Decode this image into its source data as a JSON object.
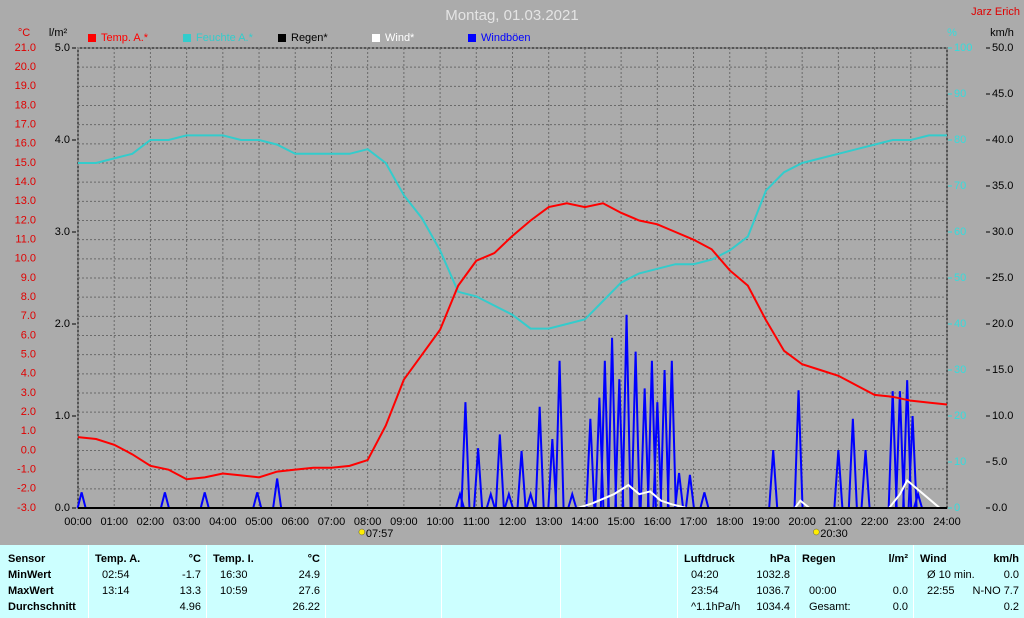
{
  "chart_data": {
    "type": "line",
    "title": "Montag, 01.03.2021",
    "author": "Jarz Erich",
    "ylabel": "°C",
    "y2label": "km/h",
    "y3label": "l/m²",
    "y4label": "%",
    "xlim": [
      0,
      24
    ],
    "xticks": [
      {
        "value": 0,
        "label": "00:00"
      },
      {
        "value": 1,
        "label": "01:00"
      },
      {
        "value": 2,
        "label": "02:00"
      },
      {
        "value": 3,
        "label": "03:00"
      },
      {
        "value": 4,
        "label": "04:00"
      },
      {
        "value": 5,
        "label": "05:00"
      },
      {
        "value": 6,
        "label": "06:00"
      },
      {
        "value": 7,
        "label": "07:00"
      },
      {
        "value": 8,
        "label": "08:00"
      },
      {
        "value": 9,
        "label": "09:00"
      },
      {
        "value": 10,
        "label": "10:00"
      },
      {
        "value": 11,
        "label": "11:00"
      },
      {
        "value": 12,
        "label": "12:00"
      },
      {
        "value": 13,
        "label": "13:00"
      },
      {
        "value": 14,
        "label": "14:00"
      },
      {
        "value": 15,
        "label": "15:00"
      },
      {
        "value": 16,
        "label": "16:00"
      },
      {
        "value": 17,
        "label": "17:00"
      },
      {
        "value": 18,
        "label": "18:00"
      },
      {
        "value": 19,
        "label": "19:00"
      },
      {
        "value": 20,
        "label": "20:00"
      },
      {
        "value": 21,
        "label": "21:00"
      },
      {
        "value": 22,
        "label": "22:00"
      },
      {
        "value": 23,
        "label": "23:00"
      },
      {
        "value": 24,
        "label": "24:00"
      }
    ],
    "ylim": [
      -3,
      21
    ],
    "yticks": [
      {
        "value": -3,
        "label": "-3.0"
      },
      {
        "value": -2,
        "label": "-2.0"
      },
      {
        "value": -1,
        "label": "-1.0"
      },
      {
        "value": 0,
        "label": "0.0"
      },
      {
        "value": 1,
        "label": "1.0"
      },
      {
        "value": 2,
        "label": "2.0"
      },
      {
        "value": 3,
        "label": "3.0"
      },
      {
        "value": 4,
        "label": "4.0"
      },
      {
        "value": 5,
        "label": "5.0"
      },
      {
        "value": 6,
        "label": "6.0"
      },
      {
        "value": 7,
        "label": "7.0"
      },
      {
        "value": 8,
        "label": "8.0"
      },
      {
        "value": 9,
        "label": "9.0"
      },
      {
        "value": 10,
        "label": "10.0"
      },
      {
        "value": 11,
        "label": "11.0"
      },
      {
        "value": 12,
        "label": "12.0"
      },
      {
        "value": 13,
        "label": "13.0"
      },
      {
        "value": 14,
        "label": "14.0"
      },
      {
        "value": 15,
        "label": "15.0"
      },
      {
        "value": 16,
        "label": "16.0"
      },
      {
        "value": 17,
        "label": "17.0"
      },
      {
        "value": 18,
        "label": "18.0"
      },
      {
        "value": 19,
        "label": "19.0"
      },
      {
        "value": 20,
        "label": "20.0"
      },
      {
        "value": 21,
        "label": "21.0"
      }
    ],
    "y2lim": [
      0,
      50
    ],
    "y2ticks": [
      {
        "value": 0,
        "label": "0.0"
      },
      {
        "value": 5,
        "label": "5.0"
      },
      {
        "value": 10,
        "label": "10.0"
      },
      {
        "value": 15,
        "label": "15.0"
      },
      {
        "value": 20,
        "label": "20.0"
      },
      {
        "value": 25,
        "label": "25.0"
      },
      {
        "value": 30,
        "label": "30.0"
      },
      {
        "value": 35,
        "label": "35.0"
      },
      {
        "value": 40,
        "label": "40.0"
      },
      {
        "value": 45,
        "label": "45.0"
      },
      {
        "value": 50,
        "label": "50.0"
      }
    ],
    "y3lim": [
      0,
      5
    ],
    "y3ticks": [
      {
        "value": 0,
        "label": "0.0"
      },
      {
        "value": 1,
        "label": "1.0"
      },
      {
        "value": 2,
        "label": "2.0"
      },
      {
        "value": 3,
        "label": "3.0"
      },
      {
        "value": 4,
        "label": "4.0"
      },
      {
        "value": 5,
        "label": "5.0"
      }
    ],
    "y4lim": [
      0,
      100
    ],
    "y4ticks": [
      0,
      10,
      20,
      30,
      40,
      50,
      60,
      70,
      80,
      90,
      100
    ],
    "grid": true,
    "x": [
      0,
      0.5,
      1,
      1.5,
      2,
      2.5,
      3,
      3.5,
      4,
      4.5,
      5,
      5.5,
      6,
      6.5,
      7,
      7.5,
      8,
      8.5,
      9,
      9.5,
      10,
      10.5,
      11,
      11.5,
      12,
      12.5,
      13,
      13.5,
      14,
      14.5,
      15,
      15.5,
      16,
      16.5,
      17,
      17.5,
      18,
      18.5,
      19,
      19.5,
      20,
      20.5,
      21,
      21.5,
      22,
      22.5,
      23,
      23.5,
      24
    ],
    "series": [
      {
        "name": "Temp. A.*",
        "color": "#ff0000",
        "axis": "y",
        "marks": "line",
        "values": [
          0.7,
          0.6,
          0.3,
          -0.2,
          -0.8,
          -1.0,
          -1.5,
          -1.4,
          -1.2,
          -1.3,
          -1.4,
          -1.1,
          -1.0,
          -0.9,
          -0.9,
          -0.8,
          -0.5,
          1.3,
          3.7,
          5.0,
          6.3,
          8.6,
          9.9,
          10.3,
          11.2,
          12.0,
          12.7,
          12.9,
          12.7,
          12.9,
          12.4,
          12.0,
          11.8,
          11.4,
          11.0,
          10.5,
          9.4,
          8.6,
          6.8,
          5.2,
          4.5,
          4.2,
          3.9,
          3.4,
          2.9,
          2.8,
          2.6,
          2.5,
          2.4
        ]
      },
      {
        "name": "Feuchte A.*",
        "color": "#33cccc",
        "axis": "y4",
        "marks": "line",
        "values": [
          75,
          75,
          76,
          77,
          80,
          80,
          81,
          81,
          81,
          80,
          80,
          79,
          77,
          77,
          77,
          77,
          78,
          75,
          68,
          63,
          56,
          47,
          46,
          44,
          42,
          39,
          39,
          40,
          41,
          45,
          49,
          51,
          52,
          53,
          53,
          54,
          56,
          59,
          69,
          73,
          75,
          76,
          77,
          78,
          79,
          80,
          80,
          81,
          81
        ]
      },
      {
        "name": "Regen*",
        "color": "#000000",
        "axis": "y3",
        "marks": "line",
        "x": [
          0,
          24
        ],
        "values": [
          0,
          0
        ]
      },
      {
        "name": "Wind*",
        "color": "#ffffff",
        "axis": "y2",
        "marks": "line",
        "x": [
          0,
          13.8,
          14.2,
          14.5,
          14.8,
          15.2,
          15.5,
          15.8,
          16.1,
          16.4,
          16.8,
          19.8,
          19.95,
          20.2,
          22.4,
          22.7,
          22.9,
          23.2,
          23.5,
          23.8,
          24
        ],
        "values": [
          0,
          0,
          0.5,
          1,
          1.5,
          2.5,
          1.5,
          1.8,
          0.8,
          0.4,
          0,
          0,
          0.8,
          0,
          0,
          1.5,
          3,
          2,
          1,
          0,
          0
        ]
      },
      {
        "name": "Windböen",
        "color": "#0000ff",
        "axis": "y2",
        "marks": "spikes",
        "x": [
          0.1,
          2.4,
          3.5,
          4.95,
          5.5,
          10.55,
          10.7,
          11.05,
          11.4,
          11.65,
          11.9,
          12.25,
          12.5,
          12.75,
          13.1,
          13.3,
          13.65,
          14.15,
          14.4,
          14.55,
          14.75,
          14.95,
          15.15,
          15.4,
          15.65,
          15.85,
          16,
          16.2,
          16.4,
          16.6,
          16.9,
          17.3,
          19.2,
          19.9,
          21.0,
          21.4,
          21.75,
          22.5,
          22.7,
          22.9,
          23.05,
          23.2
        ],
        "values": [
          1.7,
          1.7,
          1.7,
          1.7,
          3.2,
          1.5,
          11.5,
          6.5,
          1.5,
          8,
          1.5,
          6.2,
          1.5,
          11,
          7.5,
          16,
          1.5,
          9.7,
          12,
          16,
          18.5,
          14,
          21,
          17,
          13,
          16,
          11.5,
          15,
          16,
          3.8,
          3.6,
          1.7,
          6.3,
          12.8,
          6.3,
          9.7,
          6.3,
          12.7,
          12.7,
          13.9,
          10,
          1.5
        ]
      }
    ],
    "annotations": [
      {
        "x": 7.95,
        "label": "07:57"
      },
      {
        "x": 20.5,
        "label": "20:30"
      }
    ]
  },
  "table": {
    "sensor": {
      "title": "Sensor",
      "rows": [
        "MinWert",
        "MaxWert",
        "Durchschnitt"
      ]
    },
    "groups": [
      {
        "title": "Temp. A.",
        "unit": "°C",
        "rows": [
          {
            "time": "02:54",
            "value": "-1.7"
          },
          {
            "time": "13:14",
            "value": "13.3"
          },
          {
            "value": "4.96"
          }
        ]
      },
      {
        "title": "Temp. I.",
        "unit": "°C",
        "rows": [
          {
            "time": "16:30",
            "value": "24.9"
          },
          {
            "time": "10:59",
            "value": "27.6"
          },
          {
            "value": "26.22"
          }
        ]
      },
      {
        "title": "Luftdruck",
        "unit": "hPa",
        "rows": [
          {
            "time": "04:20",
            "value": "1032.8"
          },
          {
            "time": "23:54",
            "value": "1036.7"
          },
          {
            "time": "^1.1hPa/h",
            "value": "1034.4"
          }
        ]
      },
      {
        "title": "Regen",
        "unit": "l/m²",
        "rows": [
          null,
          {
            "time": "00:00",
            "value": "0.0"
          },
          {
            "time": "Gesamt:",
            "value": "0.0"
          }
        ]
      },
      {
        "title": "Wind",
        "unit": "km/h",
        "rows": [
          {
            "time": "Ø 10 min.",
            "value": "0.0"
          },
          {
            "time": "22:55",
            "value": "N-NO 7.7"
          },
          {
            "value": "0.2"
          }
        ]
      }
    ]
  }
}
